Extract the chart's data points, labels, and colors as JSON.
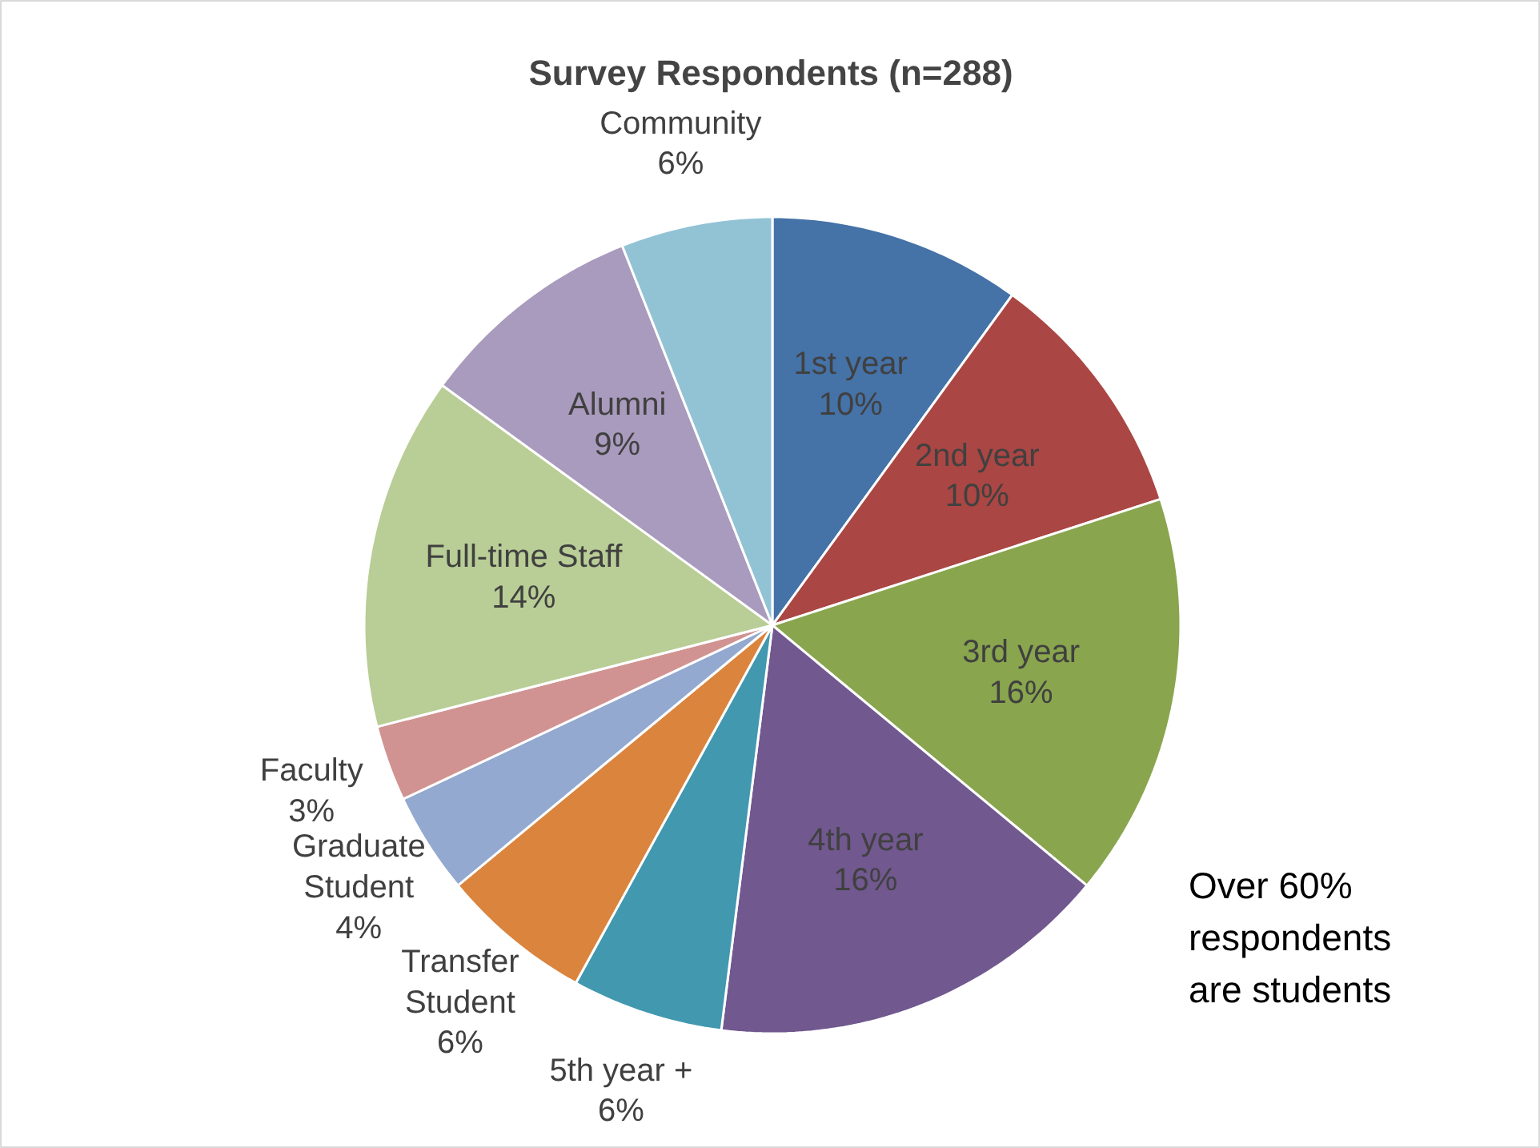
{
  "chart_data": {
    "type": "pie",
    "title": "Survey Respondents (n=288)",
    "categories": [
      "1st year",
      "2nd year",
      "3rd year",
      "4th year",
      "5th year +",
      "Transfer Student",
      "Graduate Student",
      "Faculty",
      "Full-time Staff",
      "Alumni",
      "Community"
    ],
    "values": [
      10,
      10,
      16,
      16,
      6,
      6,
      4,
      3,
      14,
      9,
      6
    ],
    "value_labels": [
      "10%",
      "10%",
      "16%",
      "16%",
      "6%",
      "6%",
      "4%",
      "3%",
      "14%",
      "9%",
      "6%"
    ],
    "colors": [
      "#4572a7",
      "#aa4643",
      "#89a54e",
      "#71588f",
      "#4198af",
      "#db843d",
      "#93a9cf",
      "#d19392",
      "#b9cd96",
      "#a99bbd",
      "#92c3d5"
    ],
    "annotations": [
      "Over 60% respondents are students"
    ]
  }
}
